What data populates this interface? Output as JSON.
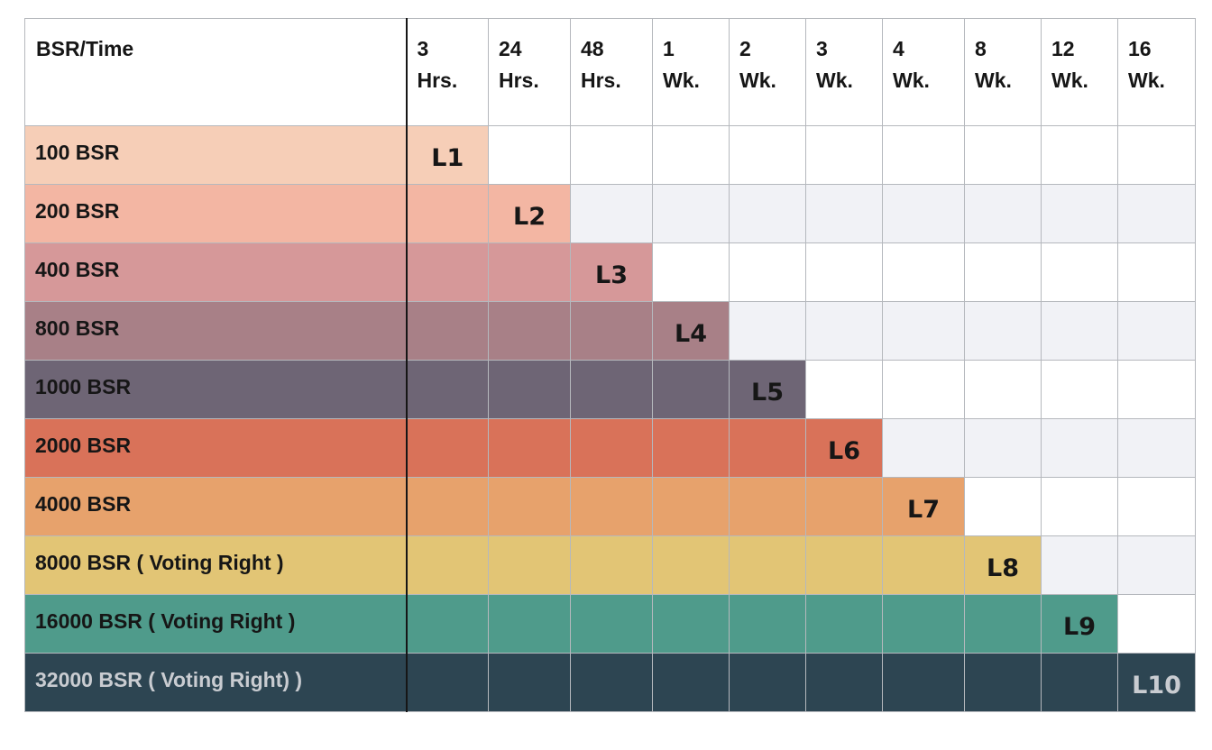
{
  "header": {
    "corner": "BSR/Time",
    "columns": [
      "3\nHrs.",
      "24\nHrs.",
      "48\nHrs.",
      "1\nWk.",
      "2\nWk.",
      "3\nWk.",
      "4\nWk.",
      "8\nWk.",
      "12\nWk.",
      "16\nWk."
    ]
  },
  "rows": [
    {
      "label": "100 BSR",
      "level": "L1",
      "color": "#f6ceb7",
      "text_color": "#161616"
    },
    {
      "label": "200 BSR",
      "level": "L2",
      "color": "#f3b6a3",
      "text_color": "#161616"
    },
    {
      "label": "400 BSR",
      "level": "L3",
      "color": "#d69899",
      "text_color": "#161616"
    },
    {
      "label": "800 BSR",
      "level": "L4",
      "color": "#a88087",
      "text_color": "#161616"
    },
    {
      "label": "1000 BSR",
      "level": "L5",
      "color": "#6e6575",
      "text_color": "#161616"
    },
    {
      "label": "2000 BSR",
      "level": "L6",
      "color": "#d97259",
      "text_color": "#161616"
    },
    {
      "label": "4000 BSR",
      "level": "L7",
      "color": "#e7a26c",
      "text_color": "#161616"
    },
    {
      "label": "8000 BSR ( Voting Right )",
      "level": "L8",
      "color": "#e2c575",
      "text_color": "#161616"
    },
    {
      "label": "16000 BSR ( Voting Right )",
      "level": "L9",
      "color": "#4f9b8b",
      "text_color": "#161616"
    },
    {
      "label": "32000 BSR ( Voting Right) )",
      "level": "L10",
      "color": "#2d4552",
      "text_color": "#c9ccd1"
    }
  ],
  "empty_colors": {
    "odd": "#ffffff",
    "even": "#f1f2f6"
  }
}
